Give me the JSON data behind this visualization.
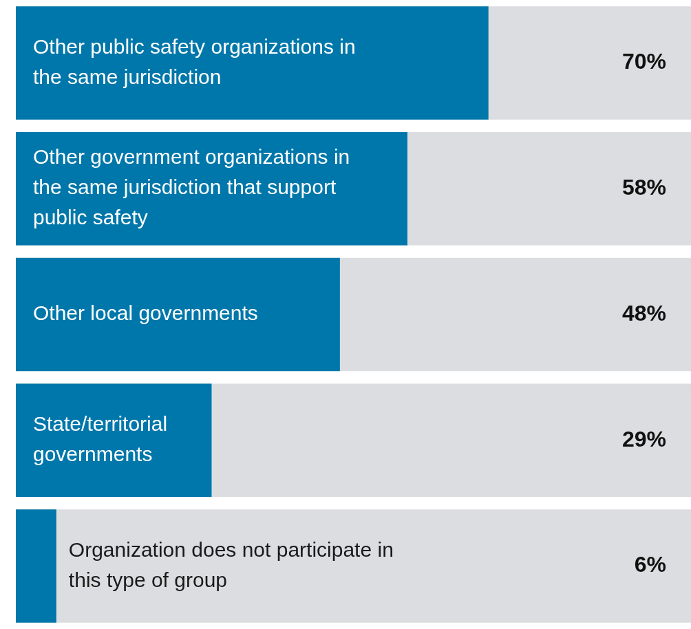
{
  "chart_data": {
    "type": "bar",
    "orientation": "horizontal",
    "categories": [
      "Other public safety organizations in the same jurisdiction",
      "Other government organizations in the same jurisdiction that support public safety",
      "Other local governments",
      "State/territorial governments",
      "Organization does not participate in this type of group"
    ],
    "values": [
      70,
      58,
      48,
      29,
      6
    ],
    "value_labels": [
      "70%",
      "58%",
      "48%",
      "29%",
      "6%"
    ],
    "color": "#0077aa",
    "xlim": [
      0,
      100
    ],
    "legend": false
  }
}
